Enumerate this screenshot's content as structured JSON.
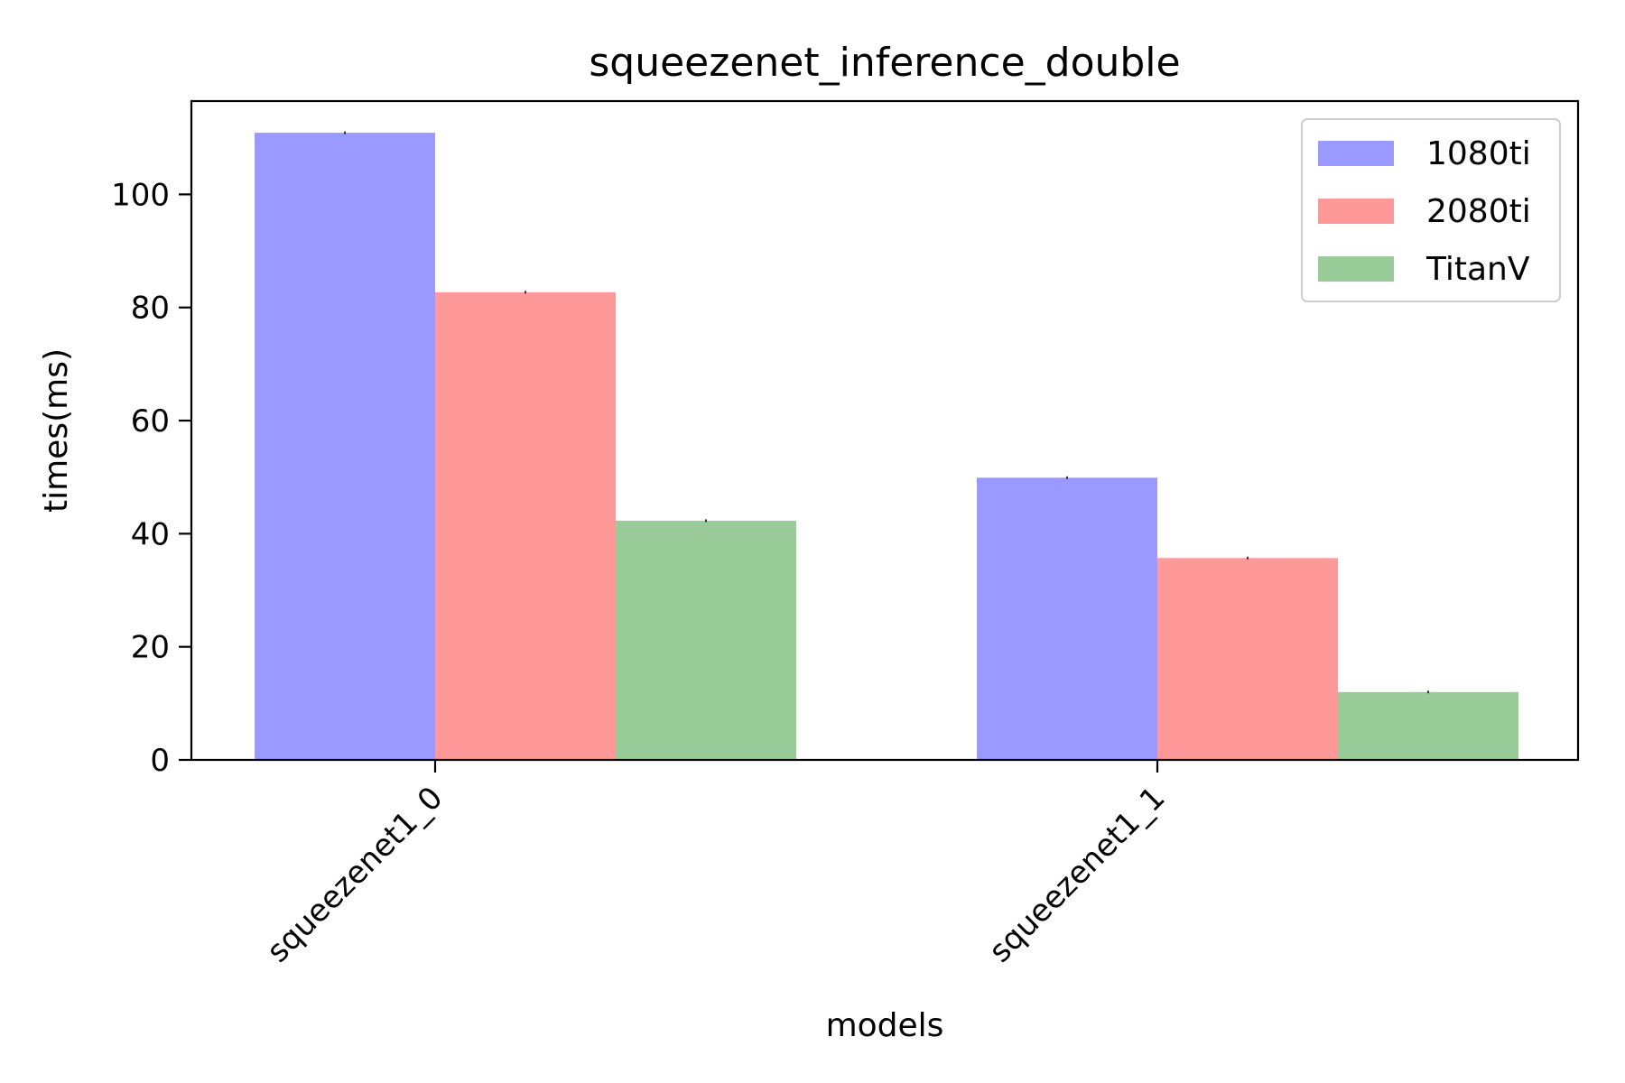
{
  "chart_data": {
    "type": "bar",
    "title": "squeezenet_inference_double",
    "xlabel": "models",
    "ylabel": "times(ms)",
    "categories": [
      "squeezenet1_0",
      "squeezenet1_1"
    ],
    "series": [
      {
        "name": "1080ti",
        "values": [
          110.9,
          49.9
        ],
        "color": "#9999ff"
      },
      {
        "name": "2080ti",
        "values": [
          82.7,
          35.7
        ],
        "color": "#ff9999"
      },
      {
        "name": "TitanV",
        "values": [
          42.3,
          12.0
        ],
        "color": "#99cc99"
      }
    ],
    "yticks": [
      0,
      20,
      40,
      60,
      80,
      100
    ],
    "ylim": [
      0,
      116.5
    ],
    "grid": false,
    "legend_position": "top-right"
  }
}
